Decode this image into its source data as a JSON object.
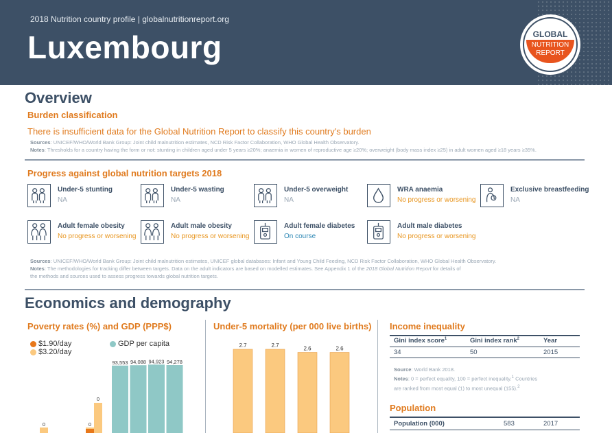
{
  "header": {
    "subtitle": "2018 Nutrition country profile  |  globalnutritionreport.org",
    "title": "Luxembourg",
    "logo": {
      "line1": "GLOBAL",
      "line2": "NUTRITION",
      "line3": "REPORT"
    }
  },
  "overview": {
    "heading": "Overview",
    "burden": {
      "heading": "Burden classification",
      "text": "There is insufficient data for the Global Nutrition Report to classify this country's burden",
      "sources_label": "Sources",
      "sources": ": UNICEF/WHO/World Bank Group: Joint child malnutrition estimates, NCD Risk Factor Collaboration, WHO Global Health Observatory.",
      "notes_label": "Notes",
      "notes": ": Thresholds for a country having the form or not: stunting in children aged under 5 years ≥20%; anaemia in women of reproductive age ≥20%; overweight (body mass index ≥25) in adult women aged ≥18 years ≥35%."
    },
    "progress": {
      "heading": "Progress against global nutrition targets 2018",
      "targets": [
        {
          "name": "Under-5 stunting",
          "status": "NA",
          "type": "na",
          "icon": "children-icon"
        },
        {
          "name": "Under-5 wasting",
          "status": "NA",
          "type": "na",
          "icon": "children-icon"
        },
        {
          "name": "Under-5 overweight",
          "status": "NA",
          "type": "na",
          "icon": "children-icon"
        },
        {
          "name": "WRA anaemia",
          "status": "No progress or worsening",
          "type": "bad",
          "icon": "blood-drop-icon"
        },
        {
          "name": "Exclusive breastfeeding",
          "status": "NA",
          "type": "na",
          "icon": "breastfeeding-icon"
        },
        {
          "name": "Adult female obesity",
          "status": "No progress or worsening",
          "type": "bad",
          "icon": "adults-icon"
        },
        {
          "name": "Adult male obesity",
          "status": "No progress or worsening",
          "type": "bad",
          "icon": "adults-icon"
        },
        {
          "name": "Adult female diabetes",
          "status": "On course",
          "type": "good",
          "icon": "glucose-meter-icon"
        },
        {
          "name": "Adult male diabetes",
          "status": "No progress or worsening",
          "type": "bad",
          "icon": "glucose-meter-icon"
        }
      ],
      "sources_label": "Sources",
      "sources": ": UNICEF/WHO/World Bank Group: Joint child malnutrition estimates, UNICEF global databases: Infant and Young Child Feeding, NCD Risk Factor Collaboration, WHO Global Health Observatory.",
      "notes_label": "Notes",
      "notes_1": ": The methodologies for tracking differ between targets. Data on the adult indicators are based on modelled estimates. See Appendix 1 of the ",
      "notes_italic": "2018 Global Nutrition Report",
      "notes_2": " for details of",
      "notes_3": "the methods and sources used to assess progress towards global nutrition targets."
    }
  },
  "economics": {
    "heading": "Economics and demography",
    "poverty": {
      "heading": "Poverty rates (%) and GDP (PPP$)",
      "legend_190": "$1.90/day",
      "legend_320": "$3.20/day",
      "legend_gdp": "GDP per capita"
    },
    "mortality": {
      "heading": "Under-5 mortality (per 000 live births)"
    },
    "inequality": {
      "heading": "Income inequality",
      "col1": "Gini index score",
      "col1_sup": "1",
      "col2": "Gini index rank",
      "col2_sup": "2",
      "col3": "Year",
      "v1": "34",
      "v2": "50",
      "v3": "2015",
      "source_label": "Source",
      "source": ": World Bank 2018.",
      "notes_label": "Notes",
      "notes_1": ": 0 = perfect equality, 100 = perfect inequality.",
      "notes_sup1": "1",
      "notes_2": " Countries",
      "notes_3": "are ranked from most equal (1) to most unequal (155).",
      "notes_sup2": "2"
    },
    "population": {
      "heading": "Population",
      "label": "Population (000)",
      "value": "583",
      "year": "2017"
    }
  },
  "colors": {
    "navy": "#3d5066",
    "orange": "#e07b1f",
    "teal": "#8fc8c6",
    "bar_orange": "#fbc97f",
    "dark_orange": "#e8781a"
  },
  "chart_data": [
    {
      "type": "bar",
      "title": "Poverty rates (%) and GDP (PPP$)",
      "series": [
        {
          "name": "$1.90/day",
          "values": [
            0,
            0
          ],
          "labels": [
            "",
            "0"
          ]
        },
        {
          "name": "$3.20/day",
          "values": [
            0,
            0
          ],
          "labels": [
            "0",
            "0"
          ]
        },
        {
          "name": "GDP per capita",
          "values": [
            93553,
            94088,
            94923,
            94278
          ],
          "labels": [
            "93,553",
            "94,088",
            "94,923",
            "94,278"
          ]
        }
      ]
    },
    {
      "type": "bar",
      "title": "Under-5 mortality (per 000 live births)",
      "values": [
        2.7,
        2.7,
        2.6,
        2.6
      ],
      "labels": [
        "2.7",
        "2.7",
        "2.6",
        "2.6"
      ]
    }
  ]
}
